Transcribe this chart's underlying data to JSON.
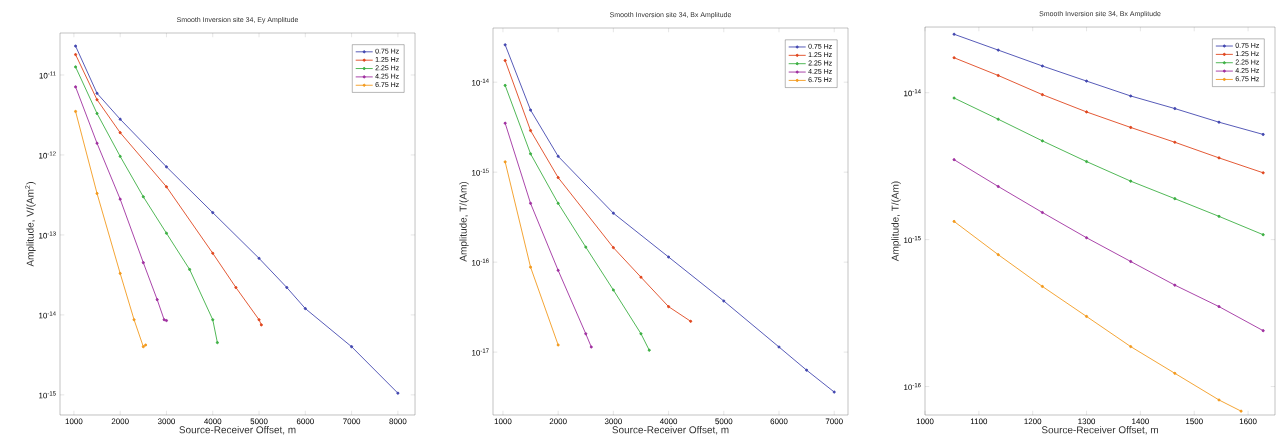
{
  "chart_data": [
    {
      "type": "line",
      "title": "Smooth Inversion site 34, Ey Amplitude",
      "xlabel": "Source-Receiver Offset, m",
      "ylabel": "Amplitude, V/(Am$^{2}$)",
      "log": "y",
      "legend": "top right",
      "marker": "circle",
      "line_style": "solid",
      "xlim": [
        700,
        8370
      ],
      "ylim": [
        5.6e-16,
        3.35e-11
      ],
      "xticks": [
        1000,
        2000,
        3000,
        4000,
        5000,
        6000,
        7000,
        8000
      ],
      "yticks": [
        {
          "value": 1e-11,
          "label": "10$^{-11}$"
        },
        {
          "value": 1e-12,
          "label": "10$^{-12}$"
        },
        {
          "value": 1e-13,
          "label": "10$^{-13}$"
        },
        {
          "value": 1e-14,
          "label": "10$^{-14}$"
        },
        {
          "value": 1e-15,
          "label": "10$^{-15}$"
        }
      ],
      "series": [
        {
          "name": "0.75 Hz",
          "color": "#4348b0",
          "x": [
            1036,
            1500,
            2000,
            3000,
            4000,
            5000,
            5600,
            6000,
            7000,
            8000
          ],
          "values": [
            2.3e-11,
            5.9e-12,
            2.8e-12,
            7.1e-13,
            1.9e-13,
            5.1e-14,
            2.2e-14,
            1.2e-14,
            4e-15,
            1.05e-15
          ]
        },
        {
          "name": "1.25 Hz",
          "color": "#e0461e",
          "x": [
            1036,
            1500,
            2000,
            3000,
            4000,
            4500,
            5000,
            5050
          ],
          "values": [
            1.8e-11,
            4.9e-12,
            1.9e-12,
            4e-13,
            5.9e-14,
            2.2e-14,
            8.7e-15,
            7.5e-15
          ]
        },
        {
          "name": "2.25 Hz",
          "color": "#3cb043",
          "x": [
            1036,
            1500,
            2000,
            2500,
            3000,
            3500,
            4000,
            4100
          ],
          "values": [
            1.26e-11,
            3.3e-12,
            9.6e-13,
            3e-13,
            1.05e-13,
            3.7e-14,
            8.7e-15,
            4.5e-15
          ]
        },
        {
          "name": "4.25 Hz",
          "color": "#a030a0",
          "x": [
            1036,
            1500,
            2000,
            2500,
            2800,
            2950,
            3000
          ],
          "values": [
            7.1e-12,
            1.4e-12,
            2.8e-13,
            4.5e-14,
            1.55e-14,
            8.7e-15,
            8.5e-15
          ]
        },
        {
          "name": "6.75 Hz",
          "color": "#f39a1e",
          "x": [
            1036,
            1500,
            2000,
            2300,
            2500,
            2550
          ],
          "values": [
            3.5e-12,
            3.3e-13,
            3.3e-14,
            8.7e-15,
            4e-15,
            4.2e-15
          ]
        }
      ]
    },
    {
      "type": "line",
      "title": "Smooth Inversion site 34, Bx Amplitude",
      "xlabel": "Source-Receiver Offset, m",
      "ylabel": "Amplitude, T/(Am)",
      "log": "y",
      "legend": "top right",
      "marker": "circle",
      "line_style": "solid",
      "xlim": [
        820,
        7250
      ],
      "ylim": [
        2e-18,
        4e-14
      ],
      "xticks": [
        1000,
        2000,
        3000,
        4000,
        5000,
        6000,
        7000
      ],
      "yticks": [
        {
          "value": 1e-14,
          "label": "10$^{-14}$"
        },
        {
          "value": 1e-15,
          "label": "10$^{-15}$"
        },
        {
          "value": 1e-16,
          "label": "10$^{-16}$"
        },
        {
          "value": 1e-17,
          "label": "10$^{-17}$"
        }
      ],
      "series": [
        {
          "name": "0.75 Hz",
          "color": "#4348b0",
          "x": [
            1040,
            1500,
            2000,
            3000,
            4000,
            5000,
            6000,
            6500,
            7000
          ],
          "values": [
            2.6e-14,
            4.9e-15,
            1.5e-15,
            3.5e-16,
            1.14e-16,
            3.7e-17,
            1.14e-17,
            6.3e-18,
            3.6e-18
          ]
        },
        {
          "name": "1.25 Hz",
          "color": "#e0461e",
          "x": [
            1040,
            1500,
            2000,
            3000,
            3500,
            4000,
            4400
          ],
          "values": [
            1.74e-14,
            2.9e-15,
            8.7e-16,
            1.45e-16,
            6.8e-17,
            3.2e-17,
            2.2e-17
          ]
        },
        {
          "name": "2.25 Hz",
          "color": "#3cb043",
          "x": [
            1040,
            1500,
            2000,
            2500,
            3000,
            3500,
            3650
          ],
          "values": [
            9.2e-15,
            1.6e-15,
            4.5e-16,
            1.47e-16,
            4.9e-17,
            1.6e-17,
            1.05e-17
          ]
        },
        {
          "name": "4.25 Hz",
          "color": "#a030a0",
          "x": [
            1040,
            1500,
            2000,
            2500,
            2600
          ],
          "values": [
            3.5e-15,
            4.5e-16,
            8.1e-17,
            1.6e-17,
            1.14e-17
          ]
        },
        {
          "name": "6.75 Hz",
          "color": "#f39a1e",
          "x": [
            1040,
            1500,
            2000
          ],
          "values": [
            1.3e-15,
            8.8e-17,
            1.2e-17
          ]
        }
      ]
    },
    {
      "type": "line",
      "title": "Smooth Inversion site 34, Bx Amplitude",
      "xlabel": "Source-Receiver Offset, m",
      "ylabel": "Amplitude, T/(Am)",
      "log": "y",
      "legend": "top right",
      "marker": "circle",
      "line_style": "solid",
      "xlim": [
        1000,
        1650
      ],
      "ylim": [
        6.4e-17,
        2.8e-14
      ],
      "xticks": [
        1000,
        1100,
        1200,
        1300,
        1400,
        1500,
        1600
      ],
      "yticks": [
        {
          "value": 1e-14,
          "label": "10$^{-14}$"
        },
        {
          "value": 1e-15,
          "label": "10$^{-15}$"
        },
        {
          "value": 1e-16,
          "label": "10$^{-16}$"
        }
      ],
      "series": [
        {
          "name": "0.75 Hz",
          "color": "#4348b0",
          "x": [
            1054,
            1136,
            1218,
            1300,
            1382,
            1464,
            1546,
            1628
          ],
          "values": [
            2.5e-14,
            1.95e-14,
            1.52e-14,
            1.2e-14,
            9.5e-15,
            7.8e-15,
            6.3e-15,
            5.2e-15
          ]
        },
        {
          "name": "1.25 Hz",
          "color": "#e0461e",
          "x": [
            1054,
            1136,
            1218,
            1300,
            1382,
            1464,
            1546,
            1628
          ],
          "values": [
            1.73e-14,
            1.31e-14,
            9.7e-15,
            7.4e-15,
            5.8e-15,
            4.6e-15,
            3.6e-15,
            2.85e-15
          ]
        },
        {
          "name": "2.25 Hz",
          "color": "#3cb043",
          "x": [
            1054,
            1136,
            1218,
            1300,
            1382,
            1464,
            1546,
            1628
          ],
          "values": [
            9.2e-15,
            6.6e-15,
            4.7e-15,
            3.4e-15,
            2.5e-15,
            1.9e-15,
            1.44e-15,
            1.08e-15
          ]
        },
        {
          "name": "4.25 Hz",
          "color": "#a030a0",
          "x": [
            1054,
            1136,
            1218,
            1300,
            1382,
            1464,
            1546,
            1628
          ],
          "values": [
            3.5e-15,
            2.3e-15,
            1.53e-15,
            1.03e-15,
            7.1e-16,
            4.9e-16,
            3.5e-16,
            2.4e-16
          ]
        },
        {
          "name": "6.75 Hz",
          "color": "#f39a1e",
          "x": [
            1054,
            1136,
            1218,
            1300,
            1382,
            1464,
            1546,
            1587
          ],
          "values": [
            1.33e-15,
            7.9e-16,
            4.8e-16,
            3e-16,
            1.87e-16,
            1.23e-16,
            8.1e-17,
            6.8e-17
          ]
        }
      ]
    }
  ]
}
